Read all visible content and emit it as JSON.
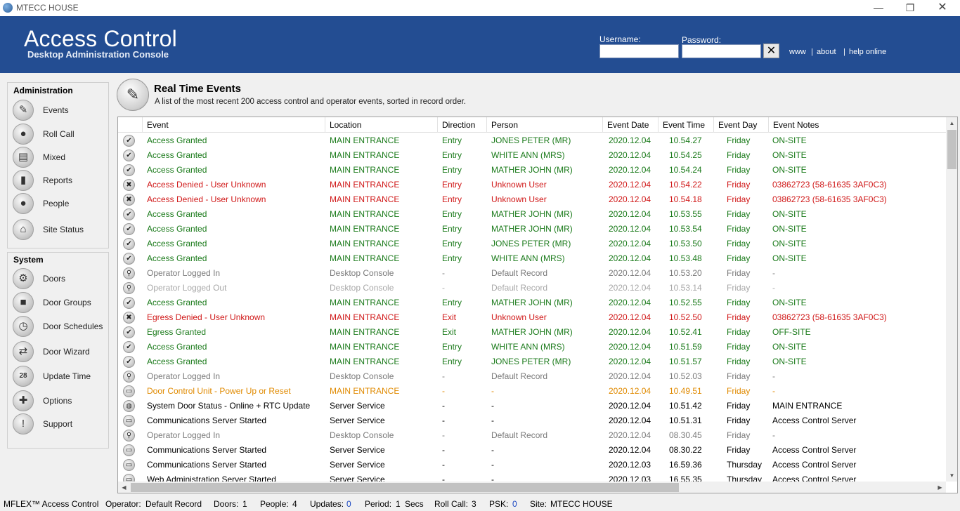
{
  "window": {
    "title": "MTECC HOUSE",
    "controls": {
      "minimize": "—",
      "maximize": "❐",
      "close": "✕"
    }
  },
  "header": {
    "app_title": "Access Control",
    "app_subtitle": "Desktop Administration Console",
    "username_label": "Username:",
    "username_value": "",
    "password_label": "Password:",
    "password_value": "",
    "clear_button": "✕",
    "links": [
      "www",
      "about",
      "help online"
    ],
    "separator": "|"
  },
  "sidebar": {
    "administration": {
      "title": "Administration",
      "items": [
        {
          "label": "Events",
          "icon": "pin-icon",
          "glyph": "✎"
        },
        {
          "label": "Roll Call",
          "icon": "person-icon",
          "glyph": "●"
        },
        {
          "label": "Mixed",
          "icon": "document-icon",
          "glyph": "▤"
        },
        {
          "label": "Reports",
          "icon": "bar-chart-icon",
          "glyph": "▮"
        },
        {
          "label": "People",
          "icon": "people-icon",
          "glyph": "●"
        },
        {
          "label": "Site Status",
          "icon": "house-icon",
          "glyph": "⌂"
        }
      ]
    },
    "system": {
      "title": "System",
      "items": [
        {
          "label": "Doors",
          "icon": "gear-icon",
          "glyph": "⚙"
        },
        {
          "label": "Door Groups",
          "icon": "lock-icon",
          "glyph": "■"
        },
        {
          "label": "Door Schedules",
          "icon": "clock-icon",
          "glyph": "◷"
        },
        {
          "label": "Door Wizard",
          "icon": "arrows-icon",
          "glyph": "⇄"
        },
        {
          "label": "Update Time",
          "icon": "calendar-icon",
          "glyph": "28"
        },
        {
          "label": "Options",
          "icon": "wrench-icon",
          "glyph": "✚"
        },
        {
          "label": "Support",
          "icon": "exclamation-icon",
          "glyph": "!"
        }
      ]
    }
  },
  "main": {
    "title": "Real Time Events",
    "description": "A list of the most recent 200 access control and operator events, sorted in record order.",
    "icon": "pin-icon"
  },
  "colors": {
    "granted": "#1a7a1a",
    "denied": "#d01818",
    "operator": "#7a7a7a",
    "operator_light": "#a8a8a8",
    "warning": "#e08a00",
    "system": "#000000",
    "header_bg": "#234d92"
  },
  "table": {
    "columns": [
      "Event",
      "Location",
      "Direction",
      "Person",
      "Event Date",
      "Event Time",
      "Event Day",
      "Event Notes"
    ],
    "rows": [
      {
        "type": "granted",
        "icon": "check",
        "event": "Access Granted",
        "location": "MAIN ENTRANCE",
        "direction": "Entry",
        "person": "JONES PETER  (MR)",
        "date": "2020.12.04",
        "time": "10.54.27",
        "day": "Friday",
        "notes": "ON-SITE"
      },
      {
        "type": "granted",
        "icon": "check",
        "event": "Access Granted",
        "location": "MAIN ENTRANCE",
        "direction": "Entry",
        "person": "WHITE ANN  (MRS)",
        "date": "2020.12.04",
        "time": "10.54.25",
        "day": "Friday",
        "notes": "ON-SITE"
      },
      {
        "type": "granted",
        "icon": "check",
        "event": "Access Granted",
        "location": "MAIN ENTRANCE",
        "direction": "Entry",
        "person": "MATHER JOHN  (MR)",
        "date": "2020.12.04",
        "time": "10.54.24",
        "day": "Friday",
        "notes": "ON-SITE"
      },
      {
        "type": "denied",
        "icon": "cross",
        "event": "Access Denied - User Unknown",
        "location": "MAIN ENTRANCE",
        "direction": "Entry",
        "person": "Unknown User",
        "date": "2020.12.04",
        "time": "10.54.22",
        "day": "Friday",
        "notes": "03862723 (58-61635 3AF0C3)"
      },
      {
        "type": "denied",
        "icon": "cross",
        "event": "Access Denied - User Unknown",
        "location": "MAIN ENTRANCE",
        "direction": "Entry",
        "person": "Unknown User",
        "date": "2020.12.04",
        "time": "10.54.18",
        "day": "Friday",
        "notes": "03862723 (58-61635 3AF0C3)"
      },
      {
        "type": "granted",
        "icon": "check",
        "event": "Access Granted",
        "location": "MAIN ENTRANCE",
        "direction": "Entry",
        "person": "MATHER JOHN  (MR)",
        "date": "2020.12.04",
        "time": "10.53.55",
        "day": "Friday",
        "notes": "ON-SITE"
      },
      {
        "type": "granted",
        "icon": "check",
        "event": "Access Granted",
        "location": "MAIN ENTRANCE",
        "direction": "Entry",
        "person": "MATHER JOHN  (MR)",
        "date": "2020.12.04",
        "time": "10.53.54",
        "day": "Friday",
        "notes": "ON-SITE"
      },
      {
        "type": "granted",
        "icon": "check",
        "event": "Access Granted",
        "location": "MAIN ENTRANCE",
        "direction": "Entry",
        "person": "JONES PETER  (MR)",
        "date": "2020.12.04",
        "time": "10.53.50",
        "day": "Friday",
        "notes": "ON-SITE"
      },
      {
        "type": "granted",
        "icon": "check",
        "event": "Access Granted",
        "location": "MAIN ENTRANCE",
        "direction": "Entry",
        "person": "WHITE ANN  (MRS)",
        "date": "2020.12.04",
        "time": "10.53.48",
        "day": "Friday",
        "notes": "ON-SITE"
      },
      {
        "type": "operator",
        "icon": "key",
        "event": "Operator Logged In",
        "location": "Desktop Console",
        "direction": "-",
        "person": "Default Record",
        "date": "2020.12.04",
        "time": "10.53.20",
        "day": "Friday",
        "notes": "-"
      },
      {
        "type": "operator_light",
        "icon": "key",
        "event": "Operator Logged Out",
        "location": "Desktop Console",
        "direction": "-",
        "person": "Default Record",
        "date": "2020.12.04",
        "time": "10.53.14",
        "day": "Friday",
        "notes": "-"
      },
      {
        "type": "granted",
        "icon": "check",
        "event": "Access Granted",
        "location": "MAIN ENTRANCE",
        "direction": "Entry",
        "person": "MATHER JOHN  (MR)",
        "date": "2020.12.04",
        "time": "10.52.55",
        "day": "Friday",
        "notes": "ON-SITE"
      },
      {
        "type": "denied",
        "icon": "cross",
        "event": "Egress Denied - User Unknown",
        "location": "MAIN ENTRANCE",
        "direction": "Exit",
        "person": "Unknown User",
        "date": "2020.12.04",
        "time": "10.52.50",
        "day": "Friday",
        "notes": "03862723 (58-61635 3AF0C3)"
      },
      {
        "type": "granted",
        "icon": "check",
        "event": "Egress Granted",
        "location": "MAIN ENTRANCE",
        "direction": "Exit",
        "person": "MATHER JOHN  (MR)",
        "date": "2020.12.04",
        "time": "10.52.41",
        "day": "Friday",
        "notes": "OFF-SITE"
      },
      {
        "type": "granted",
        "icon": "check",
        "event": "Access Granted",
        "location": "MAIN ENTRANCE",
        "direction": "Entry",
        "person": "WHITE ANN  (MRS)",
        "date": "2020.12.04",
        "time": "10.51.59",
        "day": "Friday",
        "notes": "ON-SITE"
      },
      {
        "type": "granted",
        "icon": "check",
        "event": "Access Granted",
        "location": "MAIN ENTRANCE",
        "direction": "Entry",
        "person": "JONES PETER  (MR)",
        "date": "2020.12.04",
        "time": "10.51.57",
        "day": "Friday",
        "notes": "ON-SITE"
      },
      {
        "type": "operator",
        "icon": "key",
        "event": "Operator Logged In",
        "location": "Desktop Console",
        "direction": "-",
        "person": "Default Record",
        "date": "2020.12.04",
        "time": "10.52.03",
        "day": "Friday",
        "notes": "-"
      },
      {
        "type": "warning",
        "icon": "monitor",
        "event": "Door Control Unit - Power Up or Reset",
        "location": "MAIN ENTRANCE",
        "direction": "-",
        "person": "-",
        "date": "2020.12.04",
        "time": "10.49.51",
        "day": "Friday",
        "notes": "-"
      },
      {
        "type": "system",
        "icon": "globe",
        "event": "System Door Status - Online + RTC Update",
        "location": "Server Service",
        "direction": "-",
        "person": "-",
        "date": "2020.12.04",
        "time": "10.51.42",
        "day": "Friday",
        "notes": "MAIN ENTRANCE"
      },
      {
        "type": "system",
        "icon": "monitor",
        "event": "Communications Server Started",
        "location": "Server Service",
        "direction": "-",
        "person": "-",
        "date": "2020.12.04",
        "time": "10.51.31",
        "day": "Friday",
        "notes": "Access Control Server"
      },
      {
        "type": "operator",
        "icon": "key",
        "event": "Operator Logged In",
        "location": "Desktop Console",
        "direction": "-",
        "person": "Default Record",
        "date": "2020.12.04",
        "time": "08.30.45",
        "day": "Friday",
        "notes": "-"
      },
      {
        "type": "system",
        "icon": "monitor",
        "event": "Communications Server Started",
        "location": "Server Service",
        "direction": "-",
        "person": "-",
        "date": "2020.12.04",
        "time": "08.30.22",
        "day": "Friday",
        "notes": "Access Control Server"
      },
      {
        "type": "system",
        "icon": "monitor",
        "event": "Communications Server Started",
        "location": "Server Service",
        "direction": "-",
        "person": "-",
        "date": "2020.12.03",
        "time": "16.59.36",
        "day": "Thursday",
        "notes": "Access Control Server"
      },
      {
        "type": "system",
        "icon": "monitor",
        "event": "Web Administration Server Started",
        "location": "Server Service",
        "direction": "-",
        "person": "-",
        "date": "2020.12.03",
        "time": "16.55.35",
        "day": "Thursday",
        "notes": "Access Control Server"
      }
    ],
    "icon_glyphs": {
      "check": "✔",
      "cross": "✖",
      "key": "⚲",
      "monitor": "▭",
      "globe": "◍"
    },
    "scroll": {
      "up": "▲",
      "down": "▼",
      "left": "◀",
      "right": "▶"
    }
  },
  "statusbar": {
    "product": "MFLEX™ Access Control",
    "operator_label": "Operator:",
    "operator_value": "Default Record",
    "doors_label": "Doors:",
    "doors_value": "1",
    "people_label": "People:",
    "people_value": "4",
    "updates_label": "Updates:",
    "updates_value": "0",
    "period_label": "Period:",
    "period_value": "1",
    "period_unit": "Secs",
    "rollcall_label": "Roll Call:",
    "rollcall_value": "3",
    "psk_label": "PSK:",
    "psk_value": "0",
    "site_label": "Site:",
    "site_value": "MTECC HOUSE"
  }
}
